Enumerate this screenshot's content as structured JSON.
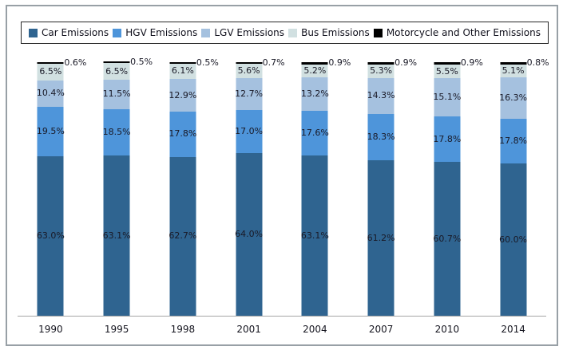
{
  "chart_data": {
    "type": "bar",
    "stacked": true,
    "orientation": "vertical",
    "title": "",
    "xlabel": "",
    "ylabel": "",
    "ylim": [
      0,
      100
    ],
    "grid": false,
    "legend_position": "top",
    "value_suffix": "%",
    "axis_color": "#A6A6A6",
    "categories": [
      "1990",
      "1995",
      "1998",
      "2001",
      "2004",
      "2007",
      "2010",
      "2014"
    ],
    "series": [
      {
        "name": "Car Emissions",
        "color": "#2F6490",
        "label_outside": false,
        "values": [
          63.0,
          63.1,
          62.7,
          64.0,
          63.1,
          61.2,
          60.7,
          60.0
        ]
      },
      {
        "name": "HGV Emissions",
        "color": "#4E95DA",
        "label_outside": false,
        "values": [
          19.5,
          18.5,
          17.8,
          17.0,
          17.6,
          18.3,
          17.8,
          17.8
        ]
      },
      {
        "name": "LGV Emissions",
        "color": "#A5C1DF",
        "label_outside": false,
        "values": [
          10.4,
          11.5,
          12.9,
          12.7,
          13.2,
          14.3,
          15.1,
          16.3
        ]
      },
      {
        "name": "Bus Emissions",
        "color": "#D1E0E1",
        "label_outside": false,
        "values": [
          6.5,
          6.5,
          6.1,
          5.6,
          5.2,
          5.3,
          5.5,
          5.1
        ]
      },
      {
        "name": "Motorcycle and Other Emissions",
        "color": "#000000",
        "label_outside": true,
        "values": [
          0.6,
          0.5,
          0.5,
          0.7,
          0.9,
          0.9,
          0.9,
          0.8
        ]
      }
    ]
  }
}
